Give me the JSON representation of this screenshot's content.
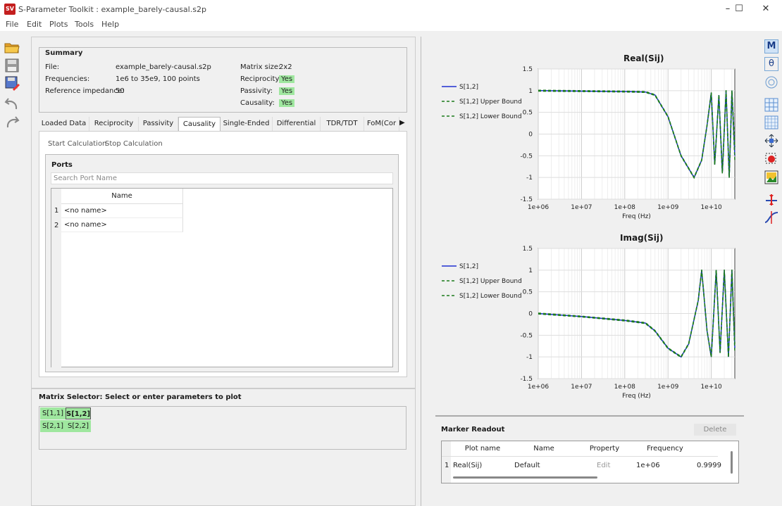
{
  "window": {
    "title": "S-Parameter Toolkit : example_barely-causal.s2p",
    "icon_label": "SV",
    "controls": [
      "minimize-icon",
      "maximize-icon",
      "close-icon"
    ]
  },
  "menu": [
    "File",
    "Edit",
    "Plots",
    "Tools",
    "Help"
  ],
  "summary": {
    "heading": "Summary",
    "file_label": "File:",
    "file_value": "example_barely-causal.s2p",
    "freq_label": "Frequencies:",
    "freq_value": "1e6 to 35e9, 100 points",
    "ref_label": "Reference impedance:",
    "ref_value": "50",
    "matrix_label": "Matrix size:",
    "matrix_value": "2x2",
    "recip_label": "Reciprocity:",
    "recip_value": "Yes",
    "pass_label": "Passivity:",
    "pass_value": "Yes",
    "caus_label": "Causality:",
    "caus_value": "Yes"
  },
  "tabs": [
    "Loaded Data",
    "Reciprocity",
    "Passivity",
    "Causality",
    "Single-Ended",
    "Differential",
    "TDR/TDT",
    "FoM(Cor"
  ],
  "active_tab": "Causality",
  "causality": {
    "start_label": "Start Calculation",
    "stop_label": "Stop Calculation",
    "ports_heading": "Ports",
    "search_placeholder": "Search Port Name",
    "table_header": "Name",
    "rows": [
      {
        "index": "1",
        "name": "<no name>"
      },
      {
        "index": "2",
        "name": "<no name>"
      }
    ]
  },
  "matrix": {
    "heading": "Matrix Selector: Select or enter parameters to plot",
    "cells": [
      [
        "S[1,1]",
        "S[1,2]"
      ],
      [
        "S[2,1]",
        "S[2,2]"
      ]
    ],
    "selected": "S[1,2]"
  },
  "plots": [
    {
      "title": "Real(Sij)",
      "xlabel": "Freq (Hz)",
      "xticks": [
        "1e+06",
        "1e+07",
        "1e+08",
        "1e+09",
        "1e+10"
      ],
      "yticks": [
        "1.5",
        "1",
        "0.5",
        "0",
        "-0.5",
        "-1",
        "-1.5"
      ],
      "legend": [
        "S[1,2]",
        "S[1,2] Upper Bound",
        "S[1,2] Lower Bound"
      ]
    },
    {
      "title": "Imag(Sij)",
      "xlabel": "Freq (Hz)",
      "xticks": [
        "1e+06",
        "1e+07",
        "1e+08",
        "1e+09",
        "1e+10"
      ],
      "yticks": [
        "1.5",
        "1",
        "0.5",
        "0",
        "-0.5",
        "-1",
        "-1.5"
      ],
      "legend": [
        "S[1,2]",
        "S[1,2] Upper Bound",
        "S[1,2] Lower Bound"
      ]
    }
  ],
  "chart_data": [
    {
      "type": "line",
      "title": "Real(Sij)",
      "xlabel": "Freq (Hz)",
      "xscale": "log",
      "xlim": [
        1000000.0,
        35000000000.0
      ],
      "ylim": [
        -1.5,
        1.5
      ],
      "series": [
        {
          "name": "S[1,2]",
          "x": [
            1000000.0,
            10000000.0,
            100000000.0,
            300000000.0,
            500000000.0,
            1000000000.0,
            2000000000.0,
            4000000000.0,
            6000000000.0,
            8000000000.0,
            10000000000.0,
            12000000000.0,
            15000000000.0,
            18000000000.0,
            22000000000.0,
            26000000000.0,
            30000000000.0,
            35000000000.0
          ],
          "y": [
            1.0,
            0.99,
            0.98,
            0.97,
            0.9,
            0.4,
            -0.5,
            -1.0,
            -0.6,
            0.2,
            0.95,
            -0.7,
            0.9,
            -0.9,
            1.0,
            -1.0,
            1.0,
            -0.5
          ]
        },
        {
          "name": "S[1,2] Upper Bound",
          "x": [
            1000000.0,
            10000000.0,
            100000000.0,
            300000000.0,
            500000000.0,
            1000000000.0,
            2000000000.0,
            4000000000.0,
            6000000000.0,
            8000000000.0,
            10000000000.0,
            12000000000.0,
            15000000000.0,
            18000000000.0,
            22000000000.0,
            26000000000.0,
            30000000000.0,
            35000000000.0
          ],
          "y": [
            1.01,
            1.0,
            0.99,
            0.98,
            0.91,
            0.41,
            -0.49,
            -0.99,
            -0.59,
            0.21,
            0.96,
            -0.69,
            0.91,
            -0.89,
            1.01,
            -0.99,
            1.01,
            -0.3
          ]
        },
        {
          "name": "S[1,2] Lower Bound",
          "x": [
            1000000.0,
            10000000.0,
            100000000.0,
            300000000.0,
            500000000.0,
            1000000000.0,
            2000000000.0,
            4000000000.0,
            6000000000.0,
            8000000000.0,
            10000000000.0,
            12000000000.0,
            15000000000.0,
            18000000000.0,
            22000000000.0,
            26000000000.0,
            30000000000.0,
            35000000000.0
          ],
          "y": [
            0.99,
            0.98,
            0.97,
            0.96,
            0.89,
            0.39,
            -0.51,
            -1.01,
            -0.61,
            0.19,
            0.94,
            -0.71,
            0.89,
            -0.91,
            0.99,
            -1.01,
            0.99,
            -0.6
          ]
        }
      ]
    },
    {
      "type": "line",
      "title": "Imag(Sij)",
      "xlabel": "Freq (Hz)",
      "xscale": "log",
      "xlim": [
        1000000.0,
        35000000000.0
      ],
      "ylim": [
        -1.5,
        1.5
      ],
      "series": [
        {
          "name": "S[1,2]",
          "x": [
            1000000.0,
            10000000.0,
            100000000.0,
            300000000.0,
            500000000.0,
            1000000000.0,
            2000000000.0,
            3000000000.0,
            5000000000.0,
            6000000000.0,
            8000000000.0,
            10000000000.0,
            13000000000.0,
            16000000000.0,
            20000000000.0,
            25000000000.0,
            30000000000.0,
            35000000000.0
          ],
          "y": [
            0.0,
            -0.07,
            -0.16,
            -0.22,
            -0.4,
            -0.8,
            -1.0,
            -0.7,
            0.3,
            1.0,
            -0.4,
            -1.0,
            1.0,
            -0.9,
            1.0,
            -1.0,
            1.0,
            -0.8
          ]
        },
        {
          "name": "S[1,2] Upper Bound",
          "x": [
            1000000.0,
            10000000.0,
            100000000.0,
            300000000.0,
            500000000.0,
            1000000000.0,
            2000000000.0,
            3000000000.0,
            5000000000.0,
            6000000000.0,
            8000000000.0,
            10000000000.0,
            13000000000.0,
            16000000000.0,
            20000000000.0,
            25000000000.0,
            30000000000.0,
            35000000000.0
          ],
          "y": [
            0.01,
            -0.06,
            -0.15,
            -0.21,
            -0.39,
            -0.79,
            -0.99,
            -0.69,
            0.31,
            1.01,
            -0.39,
            -0.99,
            1.01,
            -0.89,
            1.01,
            -0.99,
            1.01,
            -0.7
          ]
        },
        {
          "name": "S[1,2] Lower Bound",
          "x": [
            1000000.0,
            10000000.0,
            100000000.0,
            300000000.0,
            500000000.0,
            1000000000.0,
            2000000000.0,
            3000000000.0,
            5000000000.0,
            6000000000.0,
            8000000000.0,
            10000000000.0,
            13000000000.0,
            16000000000.0,
            20000000000.0,
            25000000000.0,
            30000000000.0,
            35000000000.0
          ],
          "y": [
            -0.01,
            -0.08,
            -0.17,
            -0.23,
            -0.41,
            -0.81,
            -1.01,
            -0.71,
            0.29,
            0.99,
            -0.41,
            -1.01,
            0.99,
            -0.91,
            0.99,
            -1.01,
            0.99,
            -0.9
          ]
        }
      ]
    }
  ],
  "marker": {
    "heading": "Marker Readout",
    "delete_label": "Delete",
    "headers": [
      "Plot name",
      "Name",
      "Property",
      "Frequency"
    ],
    "row": {
      "index": "1",
      "plot": "Real(Sij)",
      "name": "Default",
      "property": "Edit",
      "frequency": "1e+06",
      "value": "0.9999"
    }
  },
  "toolbar_right": [
    "M",
    "θ"
  ],
  "colors": {
    "accent_green": "#9fe79f",
    "series_blue": "#1f2fd0",
    "series_green": "#1a7a1a"
  }
}
